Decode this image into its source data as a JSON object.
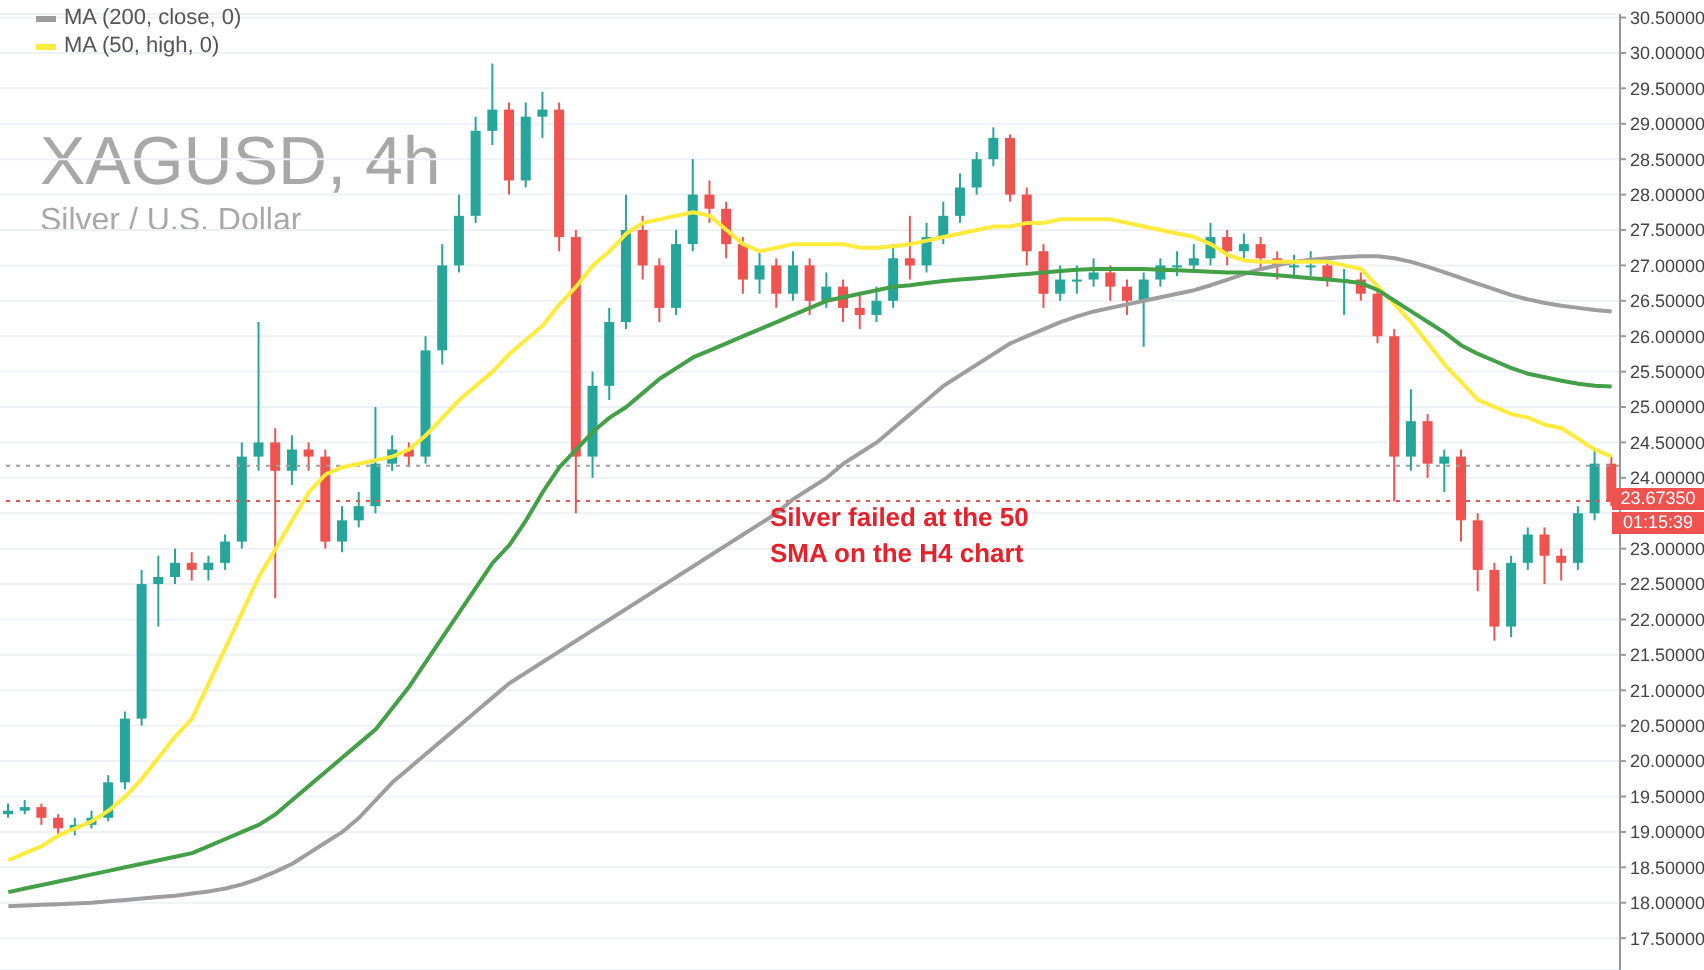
{
  "chart_data": {
    "type": "candlestick",
    "title": "XAGUSD, 4h",
    "subtitle": "Silver / U.S. Dollar",
    "categories": [
      null,
      null,
      null,
      null,
      null,
      null,
      null,
      null,
      null,
      null,
      null,
      null,
      null,
      null,
      null,
      null,
      null,
      null,
      null,
      null,
      null,
      null,
      null,
      null,
      null,
      null,
      null,
      null,
      null,
      null,
      null,
      null,
      null,
      null,
      null,
      null,
      null,
      null,
      null,
      null,
      null,
      null,
      null,
      null,
      null,
      null,
      null,
      null,
      null,
      null,
      null,
      null,
      null,
      null,
      null,
      null,
      null,
      null,
      null,
      null,
      null,
      null,
      null,
      null,
      null,
      null,
      null,
      null,
      null,
      null,
      null,
      null,
      null,
      null,
      null,
      null,
      null,
      null,
      null,
      null,
      null,
      null,
      null,
      null,
      null,
      null,
      null,
      null,
      null,
      null,
      null,
      null,
      null,
      null,
      null,
      null,
      null
    ],
    "ohlc": [
      [
        19.25,
        19.4,
        19.2,
        19.3
      ],
      [
        19.3,
        19.45,
        19.25,
        19.35
      ],
      [
        19.35,
        19.4,
        19.1,
        19.2
      ],
      [
        19.2,
        19.25,
        18.95,
        19.05
      ],
      [
        19.05,
        19.2,
        18.95,
        19.1
      ],
      [
        19.1,
        19.3,
        19.05,
        19.2
      ],
      [
        19.2,
        19.8,
        19.15,
        19.7
      ],
      [
        19.7,
        20.7,
        19.6,
        20.6
      ],
      [
        20.6,
        22.7,
        20.5,
        22.5
      ],
      [
        22.5,
        22.9,
        21.9,
        22.6
      ],
      [
        22.6,
        23.0,
        22.5,
        22.8
      ],
      [
        22.8,
        22.95,
        22.55,
        22.7
      ],
      [
        22.7,
        22.9,
        22.55,
        22.8
      ],
      [
        22.8,
        23.2,
        22.7,
        23.1
      ],
      [
        23.1,
        24.5,
        23.0,
        24.3
      ],
      [
        24.3,
        26.2,
        24.1,
        24.5
      ],
      [
        24.5,
        24.7,
        22.3,
        24.1
      ],
      [
        24.1,
        24.6,
        23.9,
        24.4
      ],
      [
        24.4,
        24.5,
        24.1,
        24.3
      ],
      [
        24.3,
        24.4,
        23.0,
        23.1
      ],
      [
        23.1,
        23.6,
        22.95,
        23.4
      ],
      [
        23.4,
        23.8,
        23.3,
        23.6
      ],
      [
        23.6,
        25.0,
        23.5,
        24.2
      ],
      [
        24.2,
        24.6,
        24.1,
        24.4
      ],
      [
        24.4,
        24.5,
        24.15,
        24.3
      ],
      [
        24.3,
        26.0,
        24.2,
        25.8
      ],
      [
        25.8,
        27.3,
        25.6,
        27.0
      ],
      [
        27.0,
        28.0,
        26.9,
        27.7
      ],
      [
        27.7,
        29.1,
        27.6,
        28.9
      ],
      [
        28.9,
        29.85,
        28.7,
        29.2
      ],
      [
        29.2,
        29.3,
        28.0,
        28.2
      ],
      [
        28.2,
        29.3,
        28.1,
        29.1
      ],
      [
        29.1,
        29.45,
        28.8,
        29.2
      ],
      [
        29.2,
        29.3,
        27.2,
        27.4
      ],
      [
        27.4,
        27.5,
        23.5,
        24.3
      ],
      [
        24.3,
        25.5,
        24.0,
        25.3
      ],
      [
        25.3,
        26.4,
        25.1,
        26.2
      ],
      [
        26.2,
        28.0,
        26.1,
        27.5
      ],
      [
        27.5,
        27.7,
        26.8,
        27.0
      ],
      [
        27.0,
        27.1,
        26.2,
        26.4
      ],
      [
        26.4,
        27.5,
        26.3,
        27.3
      ],
      [
        27.3,
        28.5,
        27.2,
        28.0
      ],
      [
        28.0,
        28.2,
        27.6,
        27.8
      ],
      [
        27.8,
        27.9,
        27.1,
        27.3
      ],
      [
        27.3,
        27.4,
        26.6,
        26.8
      ],
      [
        26.8,
        27.2,
        26.6,
        27.0
      ],
      [
        27.0,
        27.1,
        26.4,
        26.6
      ],
      [
        26.6,
        27.2,
        26.5,
        27.0
      ],
      [
        27.0,
        27.1,
        26.3,
        26.5
      ],
      [
        26.5,
        26.9,
        26.4,
        26.7
      ],
      [
        26.7,
        26.8,
        26.2,
        26.4
      ],
      [
        26.4,
        26.6,
        26.1,
        26.3
      ],
      [
        26.3,
        26.7,
        26.2,
        26.5
      ],
      [
        26.5,
        27.3,
        26.4,
        27.1
      ],
      [
        27.1,
        27.7,
        26.8,
        27.0
      ],
      [
        27.0,
        27.6,
        26.9,
        27.4
      ],
      [
        27.4,
        27.9,
        27.3,
        27.7
      ],
      [
        27.7,
        28.3,
        27.6,
        28.1
      ],
      [
        28.1,
        28.6,
        28.0,
        28.5
      ],
      [
        28.5,
        28.95,
        28.4,
        28.8
      ],
      [
        28.8,
        28.85,
        27.9,
        28.0
      ],
      [
        28.0,
        28.1,
        27.0,
        27.2
      ],
      [
        27.2,
        27.3,
        26.4,
        26.6
      ],
      [
        26.6,
        27.0,
        26.5,
        26.8
      ],
      [
        26.8,
        27.0,
        26.6,
        26.8
      ],
      [
        26.8,
        27.1,
        26.7,
        26.9
      ],
      [
        26.9,
        27.0,
        26.5,
        26.7
      ],
      [
        26.7,
        26.8,
        26.3,
        26.5
      ],
      [
        26.5,
        26.9,
        25.85,
        26.8
      ],
      [
        26.8,
        27.1,
        26.7,
        27.0
      ],
      [
        27.0,
        27.2,
        26.85,
        27.0
      ],
      [
        27.0,
        27.3,
        26.9,
        27.1
      ],
      [
        27.1,
        27.6,
        27.0,
        27.4
      ],
      [
        27.4,
        27.5,
        27.0,
        27.2
      ],
      [
        27.2,
        27.45,
        27.1,
        27.3
      ],
      [
        27.3,
        27.4,
        26.95,
        27.1
      ],
      [
        27.1,
        27.2,
        26.8,
        27.0
      ],
      [
        27.0,
        27.15,
        26.85,
        27.0
      ],
      [
        27.0,
        27.2,
        26.85,
        27.0
      ],
      [
        27.0,
        27.1,
        26.7,
        26.8
      ],
      [
        26.8,
        26.95,
        26.3,
        26.8
      ],
      [
        26.8,
        26.9,
        26.5,
        26.6
      ],
      [
        26.6,
        26.7,
        25.9,
        26.0
      ],
      [
        26.0,
        26.1,
        23.67,
        24.3
      ],
      [
        24.3,
        25.25,
        24.1,
        24.8
      ],
      [
        24.8,
        24.9,
        24.0,
        24.2
      ],
      [
        24.2,
        24.4,
        23.8,
        24.3
      ],
      [
        24.3,
        24.4,
        23.1,
        23.4
      ],
      [
        23.4,
        23.5,
        22.4,
        22.7
      ],
      [
        22.7,
        22.8,
        21.7,
        21.9
      ],
      [
        21.9,
        22.9,
        21.75,
        22.8
      ],
      [
        22.8,
        23.3,
        22.7,
        23.2
      ],
      [
        23.2,
        23.3,
        22.5,
        22.9
      ],
      [
        22.9,
        23.0,
        22.55,
        22.8
      ],
      [
        22.8,
        23.6,
        22.7,
        23.5
      ],
      [
        23.5,
        24.4,
        23.4,
        24.2
      ],
      [
        24.2,
        24.3,
        23.6,
        23.67
      ]
    ],
    "colors": [
      "#26a69a",
      "#26a69a",
      "#ef5350",
      "#ef5350",
      "#26a69a",
      "#26a69a",
      "#26a69a",
      "#26a69a",
      "#26a69a",
      "#26a69a",
      "#26a69a",
      "#ef5350",
      "#26a69a",
      "#26a69a",
      "#26a69a",
      "#26a69a",
      "#ef5350",
      "#26a69a",
      "#ef5350",
      "#ef5350",
      "#26a69a",
      "#26a69a",
      "#26a69a",
      "#26a69a",
      "#ef5350",
      "#26a69a",
      "#26a69a",
      "#26a69a",
      "#26a69a",
      "#26a69a",
      "#ef5350",
      "#26a69a",
      "#26a69a",
      "#ef5350",
      "#ef5350",
      "#26a69a",
      "#26a69a",
      "#26a69a",
      "#ef5350",
      "#ef5350",
      "#26a69a",
      "#26a69a",
      "#ef5350",
      "#ef5350",
      "#ef5350",
      "#26a69a",
      "#ef5350",
      "#26a69a",
      "#ef5350",
      "#26a69a",
      "#ef5350",
      "#ef5350",
      "#26a69a",
      "#26a69a",
      "#ef5350",
      "#26a69a",
      "#26a69a",
      "#26a69a",
      "#26a69a",
      "#26a69a",
      "#ef5350",
      "#ef5350",
      "#ef5350",
      "#26a69a",
      "#26a69a",
      "#26a69a",
      "#ef5350",
      "#ef5350",
      "#26a69a",
      "#26a69a",
      "#26a69a",
      "#26a69a",
      "#26a69a",
      "#ef5350",
      "#26a69a",
      "#ef5350",
      "#ef5350",
      "#26a69a",
      "#26a69a",
      "#ef5350",
      "#26a69a",
      "#ef5350",
      "#ef5350",
      "#ef5350",
      "#26a69a",
      "#ef5350",
      "#26a69a",
      "#ef5350",
      "#ef5350",
      "#ef5350",
      "#26a69a",
      "#26a69a",
      "#ef5350",
      "#ef5350",
      "#26a69a",
      "#26a69a",
      "#ef5350"
    ],
    "series": [
      {
        "type": "line",
        "name": "MA (200, close, 0)",
        "color": "#9e9e9e",
        "values": [
          17.95,
          17.96,
          17.97,
          17.98,
          17.99,
          18.0,
          18.02,
          18.04,
          18.06,
          18.08,
          18.1,
          18.13,
          18.16,
          18.2,
          18.26,
          18.34,
          18.44,
          18.55,
          18.7,
          18.85,
          19.0,
          19.2,
          19.45,
          19.7,
          19.9,
          20.1,
          20.3,
          20.5,
          20.7,
          20.9,
          21.1,
          21.25,
          21.4,
          21.55,
          21.7,
          21.85,
          22.0,
          22.15,
          22.3,
          22.45,
          22.6,
          22.75,
          22.9,
          23.05,
          23.2,
          23.35,
          23.5,
          23.7,
          23.85,
          24.0,
          24.2,
          24.35,
          24.5,
          24.7,
          24.9,
          25.1,
          25.3,
          25.45,
          25.6,
          25.75,
          25.9,
          26.0,
          26.1,
          26.2,
          26.28,
          26.35,
          26.4,
          26.45,
          26.5,
          26.55,
          26.6,
          26.65,
          26.72,
          26.8,
          26.88,
          26.95,
          27.0,
          27.05,
          27.08,
          27.1,
          27.12,
          27.13,
          27.13,
          27.1,
          27.05,
          26.98,
          26.9,
          26.82,
          26.74,
          26.66,
          26.58,
          26.52,
          26.47,
          26.43,
          26.4,
          26.37,
          26.35
        ]
      },
      {
        "type": "line",
        "name": "MA (50, high, 0)",
        "color": "#ffeb3b",
        "values": [
          18.6,
          18.7,
          18.8,
          18.95,
          19.05,
          19.15,
          19.3,
          19.5,
          19.75,
          20.05,
          20.35,
          20.6,
          21.1,
          21.6,
          22.1,
          22.6,
          23.0,
          23.4,
          23.8,
          24.05,
          24.15,
          24.2,
          24.25,
          24.3,
          24.4,
          24.6,
          24.85,
          25.1,
          25.3,
          25.5,
          25.75,
          25.95,
          26.15,
          26.45,
          26.7,
          27.0,
          27.2,
          27.45,
          27.6,
          27.65,
          27.7,
          27.75,
          27.7,
          27.5,
          27.3,
          27.2,
          27.25,
          27.3,
          27.3,
          27.3,
          27.3,
          27.25,
          27.25,
          27.27,
          27.3,
          27.35,
          27.4,
          27.45,
          27.5,
          27.55,
          27.55,
          27.6,
          27.6,
          27.65,
          27.65,
          27.65,
          27.65,
          27.6,
          27.55,
          27.5,
          27.45,
          27.4,
          27.3,
          27.15,
          27.07,
          27.05,
          27.05,
          27.05,
          27.05,
          27.05,
          27.0,
          26.95,
          26.7,
          26.45,
          26.2,
          25.9,
          25.6,
          25.35,
          25.1,
          25.0,
          24.9,
          24.85,
          24.75,
          24.7,
          24.55,
          24.4,
          24.3
        ]
      },
      {
        "type": "line",
        "color": "#43a047",
        "values": [
          18.15,
          18.2,
          18.25,
          18.3,
          18.35,
          18.4,
          18.45,
          18.5,
          18.55,
          18.6,
          18.65,
          18.7,
          18.8,
          18.9,
          19.0,
          19.1,
          19.25,
          19.45,
          19.65,
          19.85,
          20.05,
          20.25,
          20.45,
          20.75,
          21.05,
          21.4,
          21.75,
          22.1,
          22.45,
          22.8,
          23.05,
          23.4,
          23.8,
          24.15,
          24.4,
          24.65,
          24.85,
          25.0,
          25.2,
          25.4,
          25.55,
          25.7,
          25.8,
          25.9,
          26.0,
          26.1,
          26.2,
          26.3,
          26.4,
          26.5,
          26.55,
          26.6,
          26.65,
          26.7,
          26.72,
          26.75,
          26.78,
          26.8,
          26.82,
          26.84,
          26.86,
          26.88,
          26.9,
          26.92,
          26.94,
          26.95,
          26.95,
          26.95,
          26.95,
          26.94,
          26.93,
          26.92,
          26.91,
          26.9,
          26.9,
          26.88,
          26.86,
          26.84,
          26.82,
          26.8,
          26.78,
          26.75,
          26.65,
          26.5,
          26.35,
          26.2,
          26.05,
          25.87,
          25.75,
          25.65,
          25.55,
          25.47,
          25.42,
          25.37,
          25.33,
          25.3,
          25.29
        ]
      }
    ],
    "ylim": [
      17.05,
      30.55
    ],
    "yticks": [
      {
        "value": 17.5,
        "label": "17.50000"
      },
      {
        "value": 18,
        "label": "18.00000"
      },
      {
        "value": 18.5,
        "label": "18.50000"
      },
      {
        "value": 19,
        "label": "19.00000"
      },
      {
        "value": 19.5,
        "label": "19.50000"
      },
      {
        "value": 20,
        "label": "20.00000"
      },
      {
        "value": 20.5,
        "label": "20.50000"
      },
      {
        "value": 21,
        "label": "21.00000"
      },
      {
        "value": 21.5,
        "label": "21.50000"
      },
      {
        "value": 22,
        "label": "22.00000"
      },
      {
        "value": 22.5,
        "label": "22.50000"
      },
      {
        "value": 23,
        "label": "23.00000"
      },
      {
        "value": 23.5,
        "label": null
      },
      {
        "value": 24,
        "label": "24.00000"
      },
      {
        "value": 24.5,
        "label": "24.50000"
      },
      {
        "value": 25,
        "label": "25.00000"
      },
      {
        "value": 25.5,
        "label": "25.50000"
      },
      {
        "value": 26,
        "label": "26.00000"
      },
      {
        "value": 26.5,
        "label": "26.50000"
      },
      {
        "value": 27,
        "label": "27.00000"
      },
      {
        "value": 27.5,
        "label": "27.50000"
      },
      {
        "value": 28,
        "label": "28.00000"
      },
      {
        "value": 28.5,
        "label": "28.50000"
      },
      {
        "value": 29,
        "label": "29.00000"
      },
      {
        "value": 29.5,
        "label": "29.50000"
      },
      {
        "value": 30,
        "label": "30.00000"
      },
      {
        "value": 30.5,
        "label": "30.50000"
      }
    ],
    "ref_lines": [
      {
        "axis": "y",
        "value": 23.6735,
        "label": "23.67350",
        "color": "#ef5350",
        "line_style": "dotted"
      },
      {
        "axis": "y",
        "value": 24.17,
        "color": "#9e9e9e",
        "line_style": "dotted"
      }
    ],
    "annotations": [
      "Silver failed at the 50 SMA on the H4 chart",
      "01:15:39"
    ],
    "grid": "y",
    "legend": "top left",
    "marker": "none",
    "line_style": "solid"
  }
}
